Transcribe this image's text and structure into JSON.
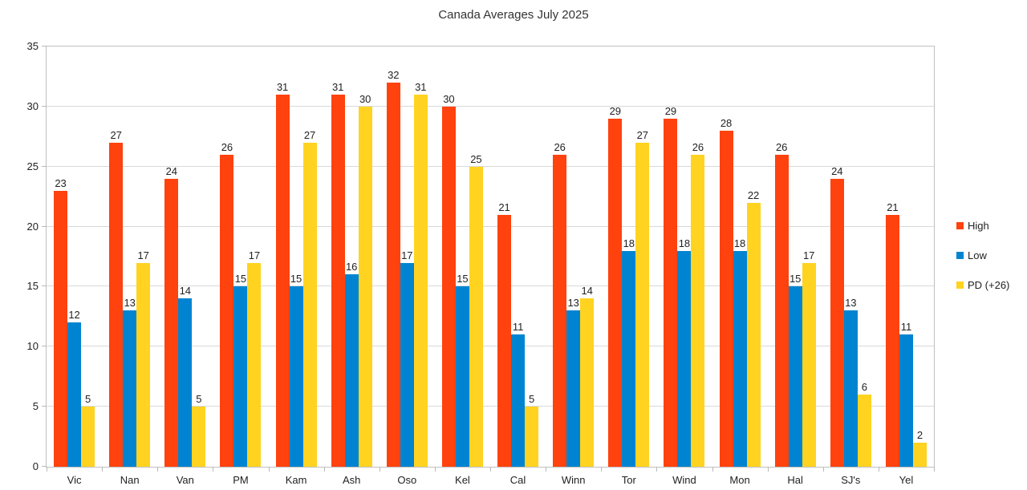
{
  "chart_data": {
    "type": "bar",
    "title": "Canada Averages July 2025",
    "categories": [
      "Vic",
      "Nan",
      "Van",
      "PM",
      "Kam",
      "Ash",
      "Oso",
      "Kel",
      "Cal",
      "Winn",
      "Tor",
      "Wind",
      "Mon",
      "Hal",
      "SJ's",
      "Yel"
    ],
    "series": [
      {
        "name": "High",
        "color": "#FF420E",
        "values": [
          23,
          27,
          24,
          26,
          31,
          31,
          32,
          30,
          21,
          26,
          29,
          29,
          28,
          26,
          24,
          21
        ]
      },
      {
        "name": "Low",
        "color": "#0084D1",
        "values": [
          12,
          13,
          14,
          15,
          15,
          16,
          17,
          15,
          11,
          13,
          18,
          18,
          18,
          15,
          13,
          11
        ]
      },
      {
        "name": "PD (+26)",
        "color": "#FFD320",
        "values": [
          5,
          17,
          5,
          17,
          27,
          30,
          31,
          25,
          5,
          14,
          27,
          26,
          22,
          17,
          6,
          2
        ]
      }
    ],
    "ylim": [
      0,
      35
    ],
    "ytick_step": 5,
    "yticks": [
      0,
      5,
      10,
      15,
      20,
      25,
      30,
      35
    ],
    "grid": true,
    "legend_position": "right",
    "show_value_labels": true,
    "colors": {
      "gridline": "#d9d9d9",
      "axis": "#b9b9b9",
      "label_text": "#222222",
      "title_text": "#333333",
      "background": "#ffffff"
    }
  }
}
